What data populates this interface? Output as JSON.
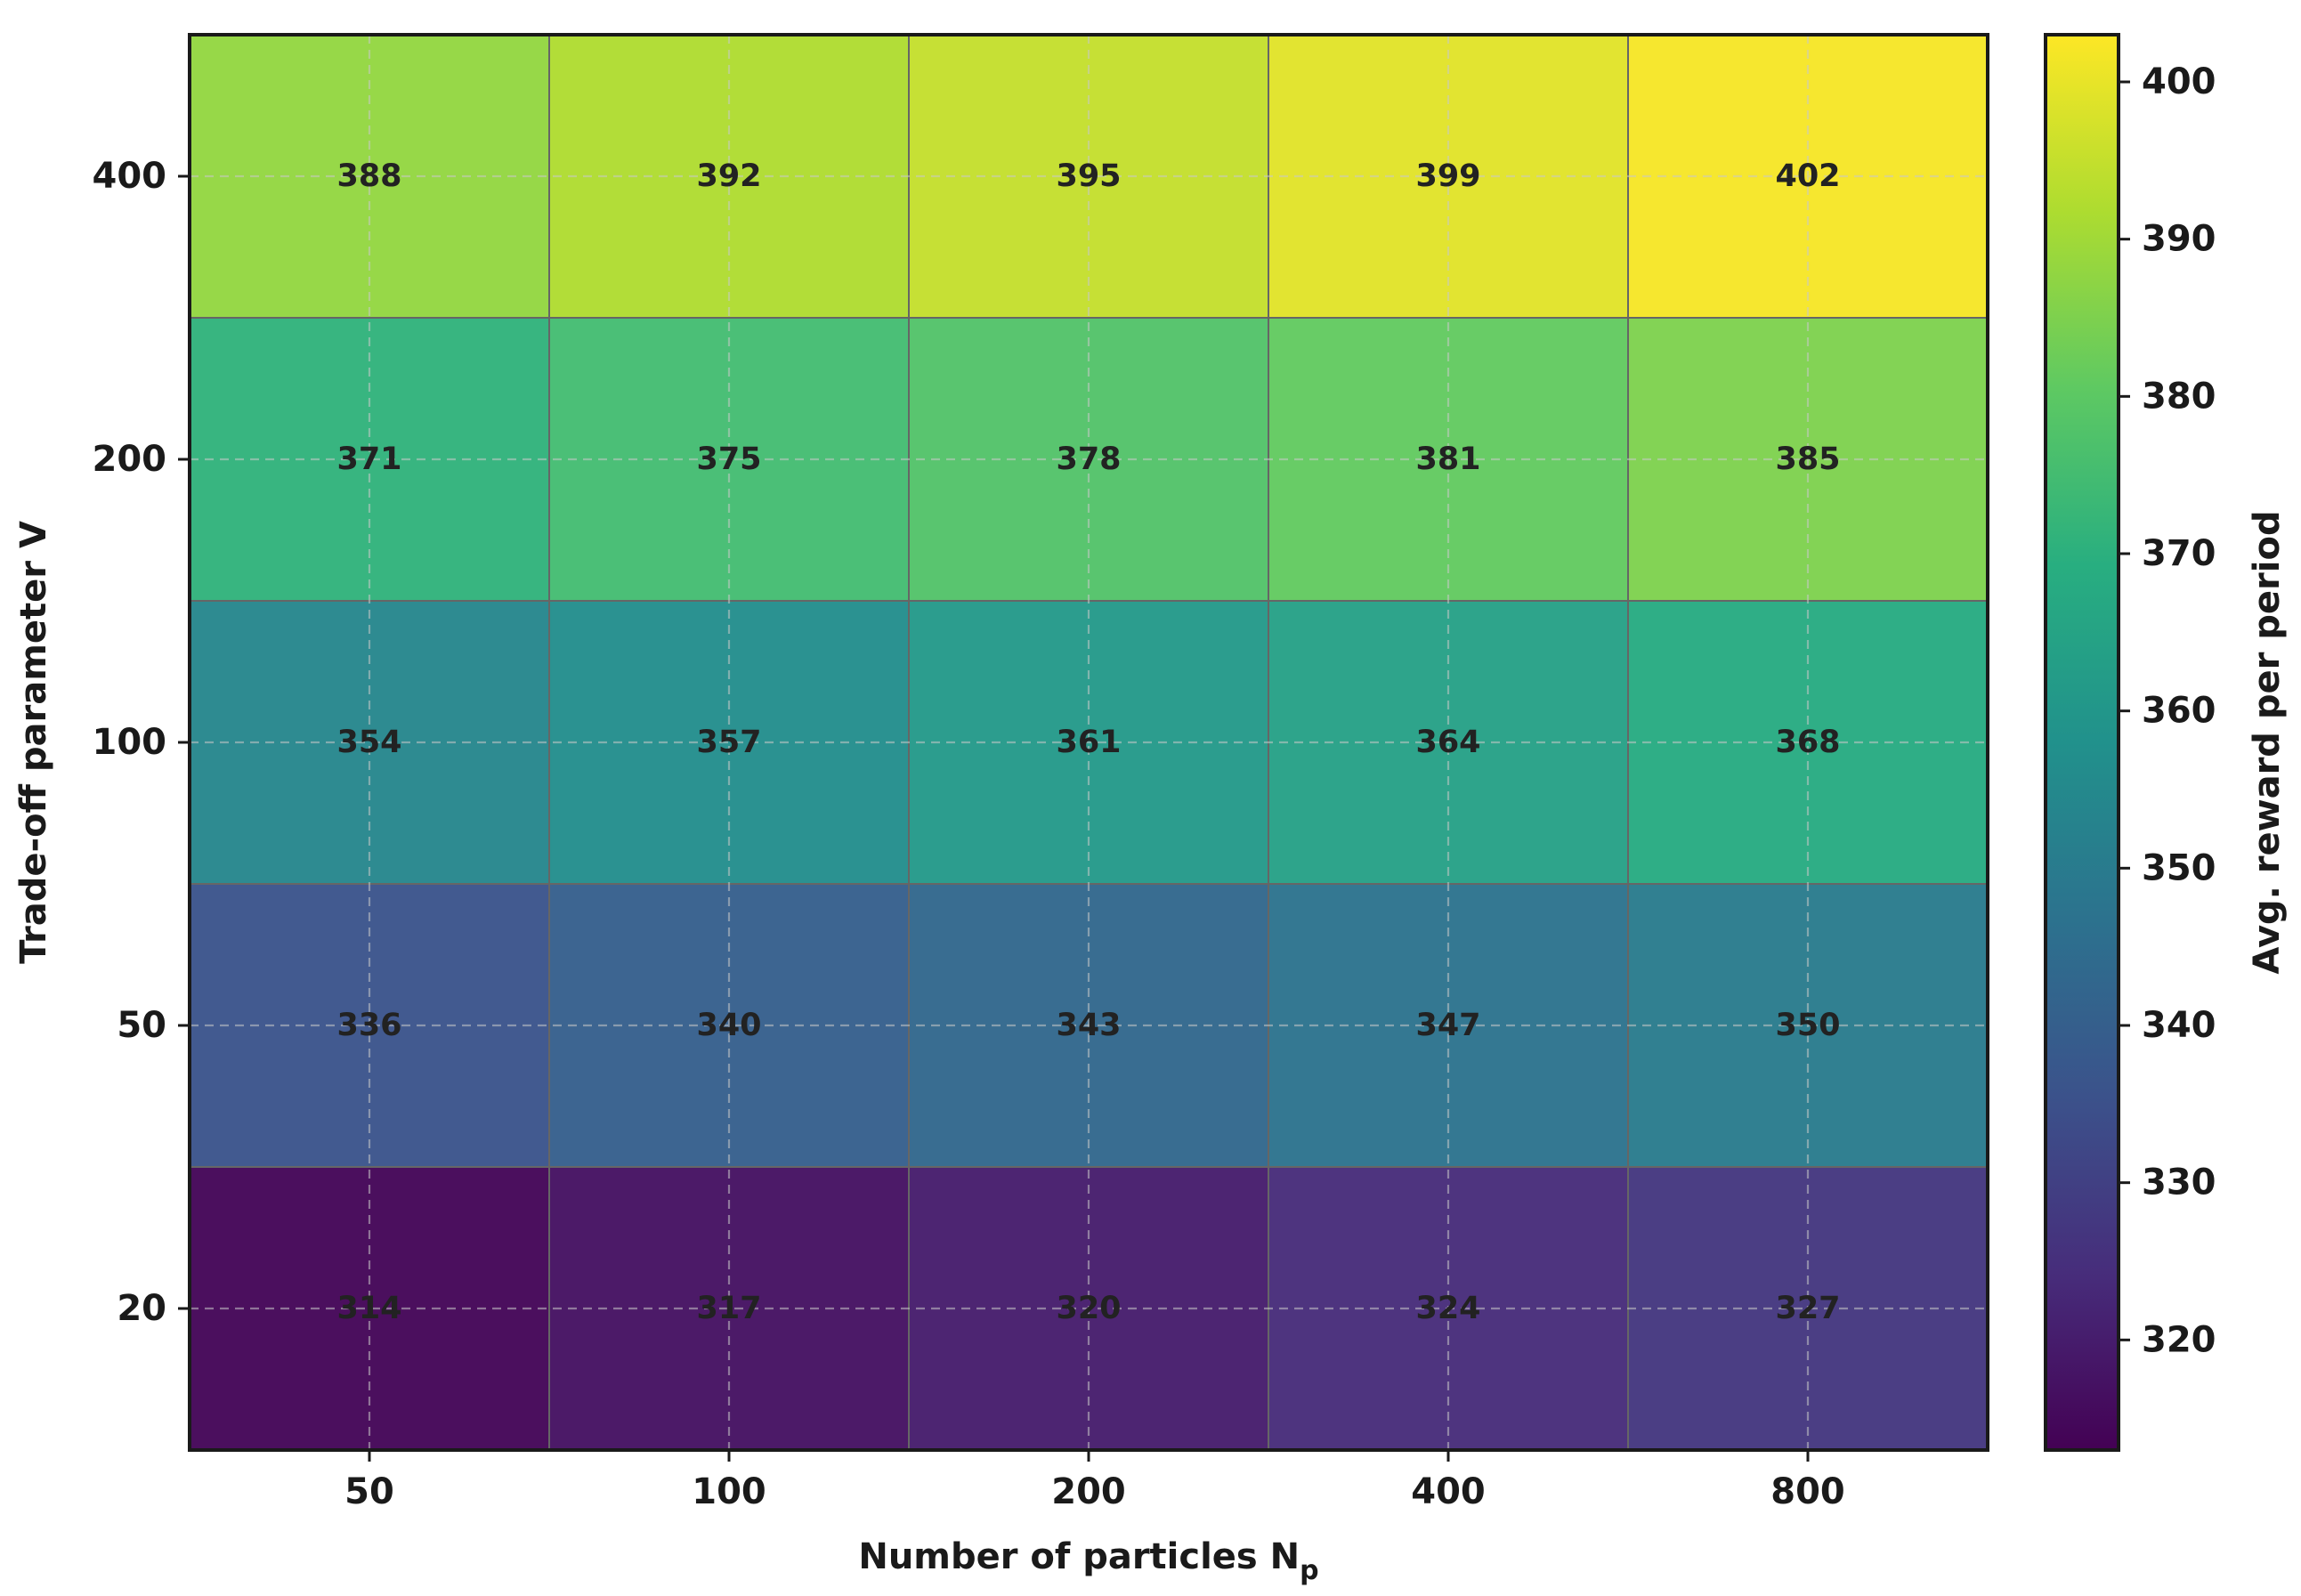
{
  "chart_data": {
    "type": "heatmap",
    "title": "",
    "xlabel": "Number of particles N",
    "xlabel_subscript": "p",
    "ylabel": "Trade-off parameter V",
    "x_categories": [
      "50",
      "100",
      "200",
      "400",
      "800"
    ],
    "y_categories": [
      "400",
      "200",
      "100",
      "50",
      "20"
    ],
    "values": [
      [
        388,
        392,
        395,
        399,
        402
      ],
      [
        371,
        375,
        378,
        381,
        385
      ],
      [
        354,
        357,
        361,
        364,
        368
      ],
      [
        336,
        340,
        343,
        347,
        350
      ],
      [
        314,
        317,
        320,
        324,
        327
      ]
    ],
    "grid": true,
    "colormap": "viridis",
    "colorbar": {
      "label": "Avg. reward per period",
      "range": [
        313,
        403
      ],
      "ticks": [
        "320",
        "330",
        "340",
        "350",
        "360",
        "370",
        "380",
        "390",
        "400"
      ]
    }
  }
}
